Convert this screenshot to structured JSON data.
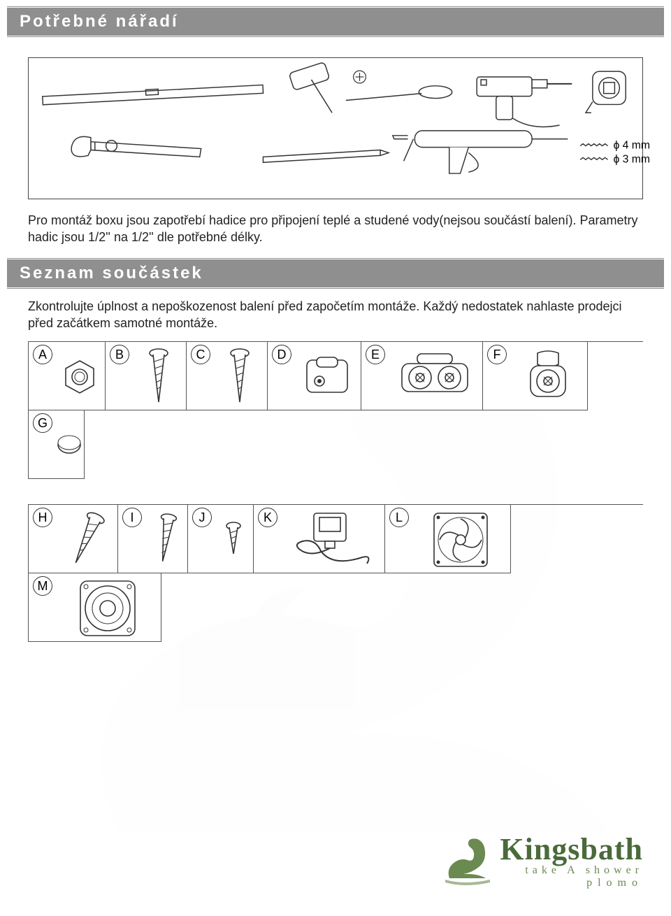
{
  "colors": {
    "header_bg": "#8f8f8f",
    "header_text": "#ffffff",
    "text": "#222222",
    "border": "#555555",
    "logo_green": "#4a6a3a",
    "logo_tagline": "#6b8a52",
    "watermark_gray": "#ececec"
  },
  "headers": {
    "tools": "Potřebné nářadí",
    "parts": "Seznam součástek"
  },
  "paragraphs": {
    "hose_note": "Pro montáž boxu jsou zapotřebí hadice pro připojení teplé a studené vody(nejsou součástí balení). Parametry hadic jsou 1/2'' na 1/2'' dle potřebné délky.",
    "parts_note": "Zkontrolujte úplnost a nepoškozenost balení před započetím montáže. Každý nedostatek nahlaste prodejci před začátkem samotné montáže."
  },
  "tools": {
    "drill_bits": [
      {
        "label": "ϕ 4 mm"
      },
      {
        "label": "ϕ 3 mm"
      }
    ],
    "items": [
      "level",
      "mallet",
      "cross-screw",
      "screwdriver",
      "drill",
      "tape-measure",
      "wrench",
      "pencil",
      "caulk-gun"
    ]
  },
  "parts_row1": [
    {
      "key": "A",
      "name": "hex-nut",
      "w": 110
    },
    {
      "key": "B",
      "name": "screw-long",
      "w": 116
    },
    {
      "key": "C",
      "name": "screw-long",
      "w": 116
    },
    {
      "key": "D",
      "name": "bracket-clip",
      "w": 134
    },
    {
      "key": "E",
      "name": "double-roller",
      "w": 174
    },
    {
      "key": "F",
      "name": "single-roller",
      "w": 150
    },
    {
      "key": "G",
      "name": "cap",
      "w": 80
    }
  ],
  "parts_row2": [
    {
      "key": "H",
      "name": "screw-long-angled",
      "w": 128
    },
    {
      "key": "I",
      "name": "screw-medium",
      "w": 100
    },
    {
      "key": "J",
      "name": "screw-small",
      "w": 94
    },
    {
      "key": "K",
      "name": "power-supply",
      "w": 188
    },
    {
      "key": "L",
      "name": "fan",
      "w": 180
    },
    {
      "key": "M",
      "name": "speaker",
      "w": 190
    }
  ],
  "logo": {
    "brand": "Kingsbath",
    "line2": "take A shower",
    "line3": "plomo"
  }
}
